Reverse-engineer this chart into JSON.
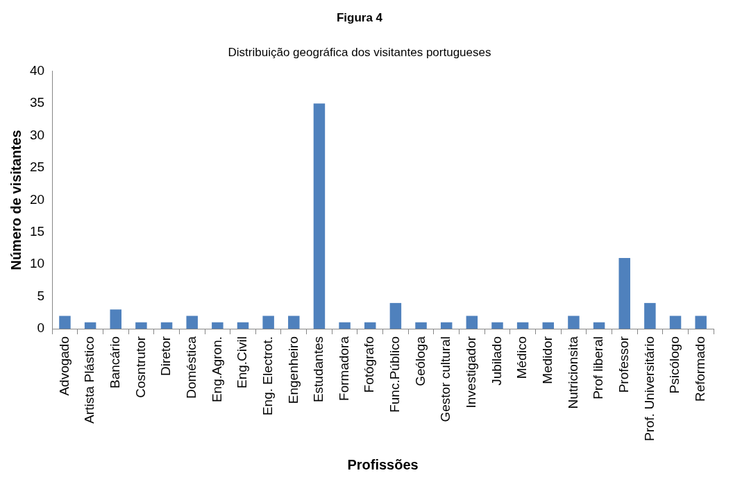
{
  "chart_data": {
    "type": "bar",
    "title": "Figura 4",
    "subtitle": "Distribuição geográfica dos visitantes portugueses",
    "xlabel": "Profissões",
    "ylabel": "Número de visitantes",
    "categories": [
      "Advogado",
      "Artista Plástico",
      "Bancário",
      "Cosntrutor",
      "Diretor",
      "Doméstica",
      "Eng.Agron.",
      "Eng.Civil",
      "Eng. Electrot.",
      "Engenheiro",
      "Estudantes",
      "Formadora",
      "Fotógrafo",
      "Func.Público",
      "Geóloga",
      "Gestor cultural",
      "Investigador",
      "Jubilado",
      "Médico",
      "Medidor",
      "Nutricionsita",
      "Prof liberal",
      "Professor",
      "Prof. Universitário",
      "Psicólogo",
      "Reformado"
    ],
    "values": [
      2,
      1,
      3,
      1,
      1,
      2,
      1,
      1,
      2,
      2,
      35,
      1,
      1,
      4,
      1,
      1,
      2,
      1,
      1,
      1,
      2,
      1,
      11,
      4,
      2,
      2
    ],
    "color": "#4f81bd",
    "ylim": [
      0,
      40
    ],
    "yticks": [
      0,
      5,
      10,
      15,
      20,
      25,
      30,
      35,
      40
    ],
    "legend": false
  }
}
